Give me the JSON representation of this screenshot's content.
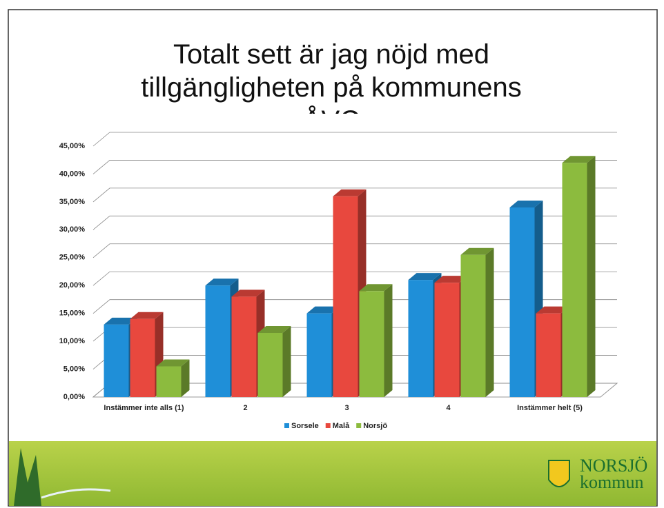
{
  "chart_data": {
    "type": "bar3d",
    "title": "Totalt sett är jag nöjd med tillgängligheten på kommunens ÅVC",
    "categories": [
      "Instämmer inte alls (1)",
      "2",
      "3",
      "4",
      "Instämmer helt (5)"
    ],
    "series": [
      {
        "name": "Sorsele",
        "color": "#1f8fd8",
        "values": [
          13,
          20,
          15,
          21,
          34
        ]
      },
      {
        "name": "Malå",
        "color": "#e8483e",
        "values": [
          14,
          18,
          36,
          20.5,
          15
        ]
      },
      {
        "name": "Norsjö",
        "color": "#8cbb3e",
        "values": [
          5.5,
          11.5,
          19,
          25.5,
          42
        ]
      }
    ],
    "ylim": [
      0,
      45
    ],
    "yticks": [
      {
        "value": 0,
        "label": "0,00%"
      },
      {
        "value": 5,
        "label": "5,00%"
      },
      {
        "value": 10,
        "label": "10,00%"
      },
      {
        "value": 15,
        "label": "15,00%"
      },
      {
        "value": 20,
        "label": "20,00%"
      },
      {
        "value": 25,
        "label": "25,00%"
      },
      {
        "value": 30,
        "label": "30,00%"
      },
      {
        "value": 35,
        "label": "35,00%"
      },
      {
        "value": 40,
        "label": "40,00%"
      },
      {
        "value": 45,
        "label": "45,00%"
      }
    ],
    "grid": true,
    "legend": "bottom"
  },
  "logo": {
    "line1": "NORSJÖ",
    "line2": "kommun"
  }
}
